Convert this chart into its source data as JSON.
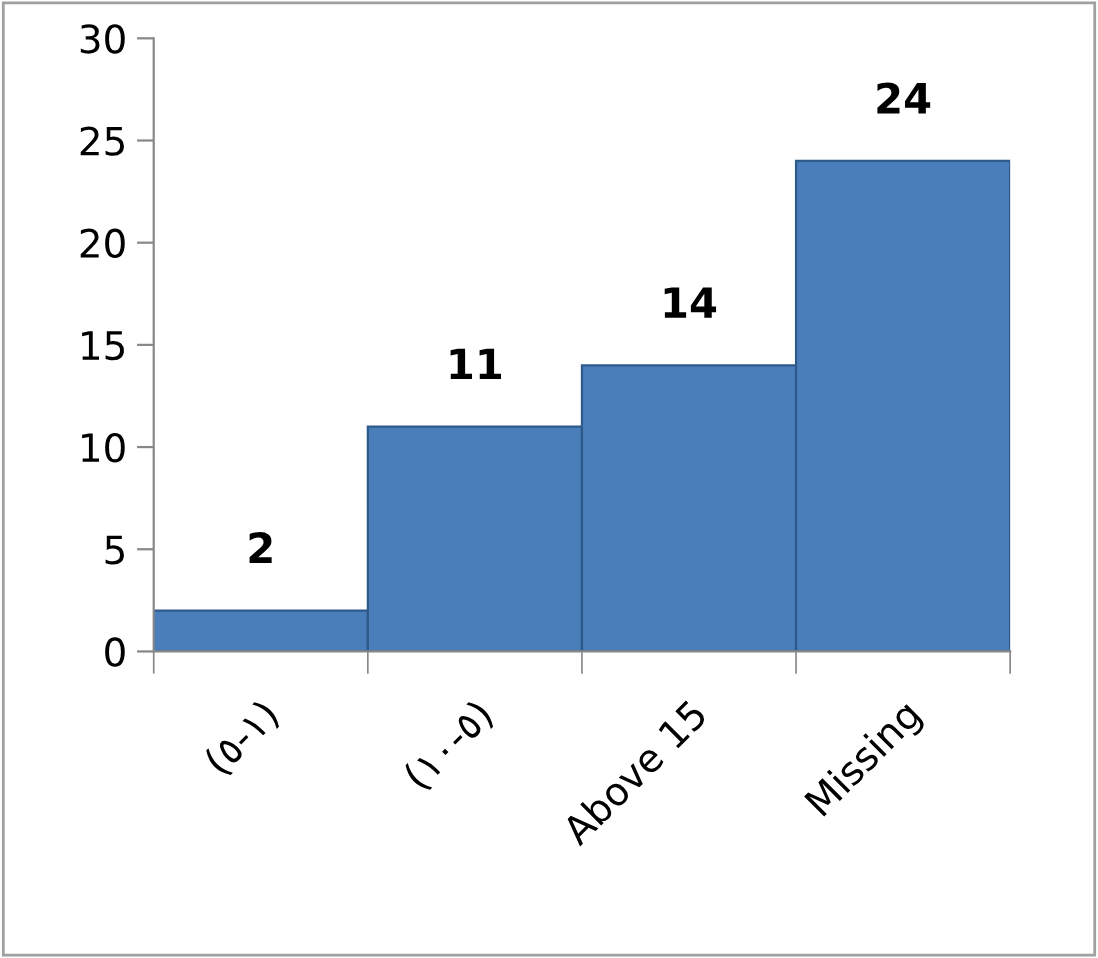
{
  "chart_data": {
    "type": "bar",
    "categories": [
      "(٥-١)",
      "(١٠-٥)",
      "Above 15",
      "Missing"
    ],
    "values": [
      2,
      11,
      14,
      24
    ],
    "color": "#4a7ebb",
    "ylim": [
      0,
      30
    ],
    "yticks": [
      0,
      5,
      10,
      15,
      20,
      25,
      30
    ],
    "data_labels": true,
    "grid": false,
    "legend": false
  }
}
